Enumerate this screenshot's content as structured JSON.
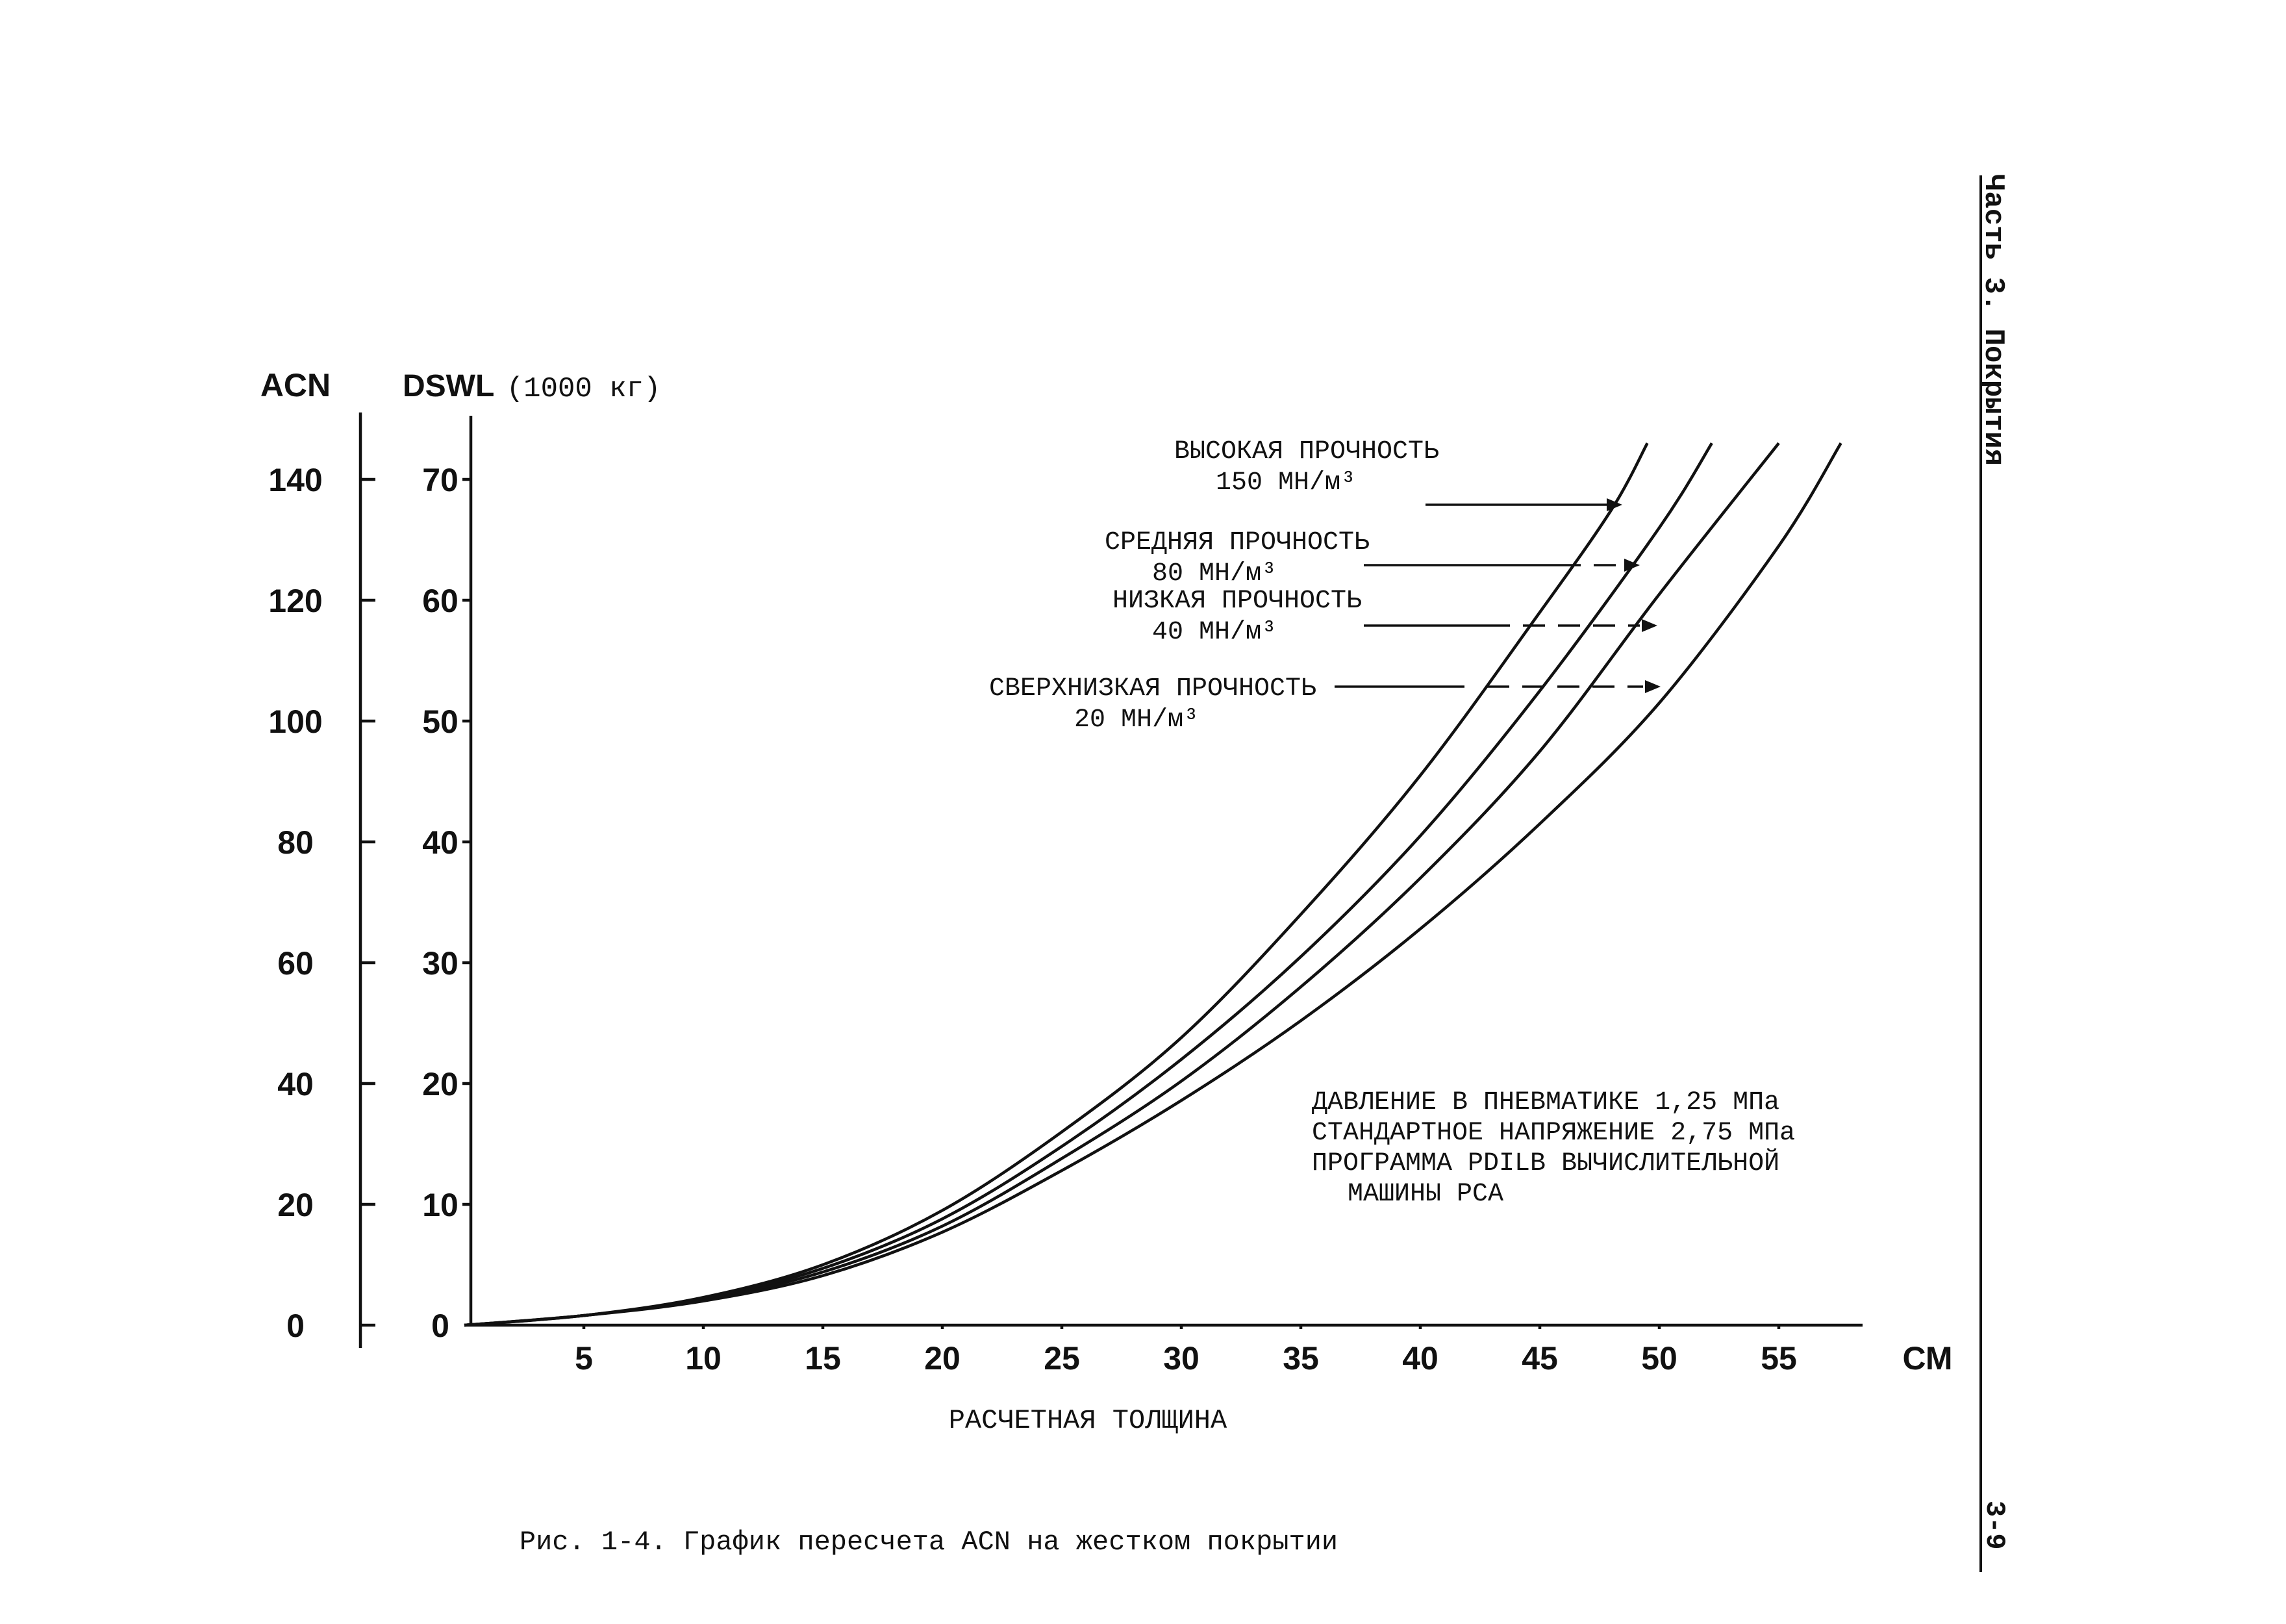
{
  "chart_data": {
    "type": "line",
    "xlabel": "РАСЧЕТНАЯ ТОЛЩИНА",
    "x_unit": "СМ",
    "ylabel_left": "ACN",
    "ylabel_right_main": "DSWL",
    "ylabel_right_unit": "(1000 кг)",
    "xlim": [
      0,
      58
    ],
    "ylim_dswl": [
      0,
      70
    ],
    "ylim_acn": [
      0,
      140
    ],
    "x_ticks": [
      5,
      10,
      15,
      20,
      25,
      30,
      35,
      40,
      45,
      50,
      55
    ],
    "dswl_ticks": [
      0,
      10,
      20,
      30,
      40,
      50,
      60,
      70
    ],
    "acn_ticks": [
      0,
      20,
      40,
      60,
      80,
      100,
      120,
      140
    ],
    "series": [
      {
        "name": "ВЫСОКАЯ ПРОЧНОСТЬ",
        "subname": "150 МН/м³",
        "x": [
          0,
          5,
          10,
          15,
          20,
          25,
          30,
          35,
          40,
          45,
          48,
          49.5
        ],
        "y": [
          0,
          0.8,
          2.3,
          5.0,
          9.5,
          16.0,
          23.8,
          34.0,
          45.5,
          59.0,
          67.5,
          73.0
        ]
      },
      {
        "name": "СРЕДНЯЯ ПРОЧНОСТЬ",
        "subname": "80 МН/м³",
        "x": [
          0,
          5,
          10,
          15,
          20,
          25,
          30,
          35,
          40,
          45,
          50,
          52.2
        ],
        "y": [
          0,
          0.8,
          2.2,
          4.7,
          8.8,
          14.8,
          22.0,
          30.5,
          40.5,
          52.5,
          66.0,
          73.0
        ]
      },
      {
        "name": "НИЗКАЯ ПРОЧНОСТЬ",
        "subname": "40 МН/м³",
        "x": [
          0,
          5,
          10,
          15,
          20,
          25,
          30,
          35,
          40,
          45,
          50,
          55
        ],
        "y": [
          0,
          0.8,
          2.1,
          4.4,
          8.2,
          13.8,
          20.2,
          28.0,
          37.0,
          47.5,
          60.5,
          73.0
        ]
      },
      {
        "name": "СВЕРХНИЗКАЯ ПРОЧНОСТЬ",
        "subname": "20 МН/м³",
        "x": [
          0,
          5,
          10,
          15,
          20,
          25,
          30,
          35,
          40,
          45,
          50,
          55,
          57.6
        ],
        "y": [
          0,
          0.8,
          2.0,
          4.1,
          7.7,
          12.8,
          18.6,
          25.2,
          32.8,
          41.5,
          51.5,
          64.5,
          73.0
        ]
      }
    ],
    "notes": [
      "ДАВЛЕНИЕ В ПНЕВМАТИКЕ 1,25 МПа",
      "СТАНДАРТНОЕ НАПРЯЖЕНИЕ 2,75 МПа",
      "ПРОГРАММА PDILB ВЫЧИСЛИТЕЛЬНОЙ",
      "МАШИНЫ PCA"
    ],
    "caption": "Рис. 1-4. График пересчета ACN на жестком покрытии"
  },
  "page": {
    "side_header": "Часть 3. Покрытия",
    "page_number": "3-9"
  },
  "colors": {
    "ink": "#111111",
    "paper": "#ffffff"
  }
}
